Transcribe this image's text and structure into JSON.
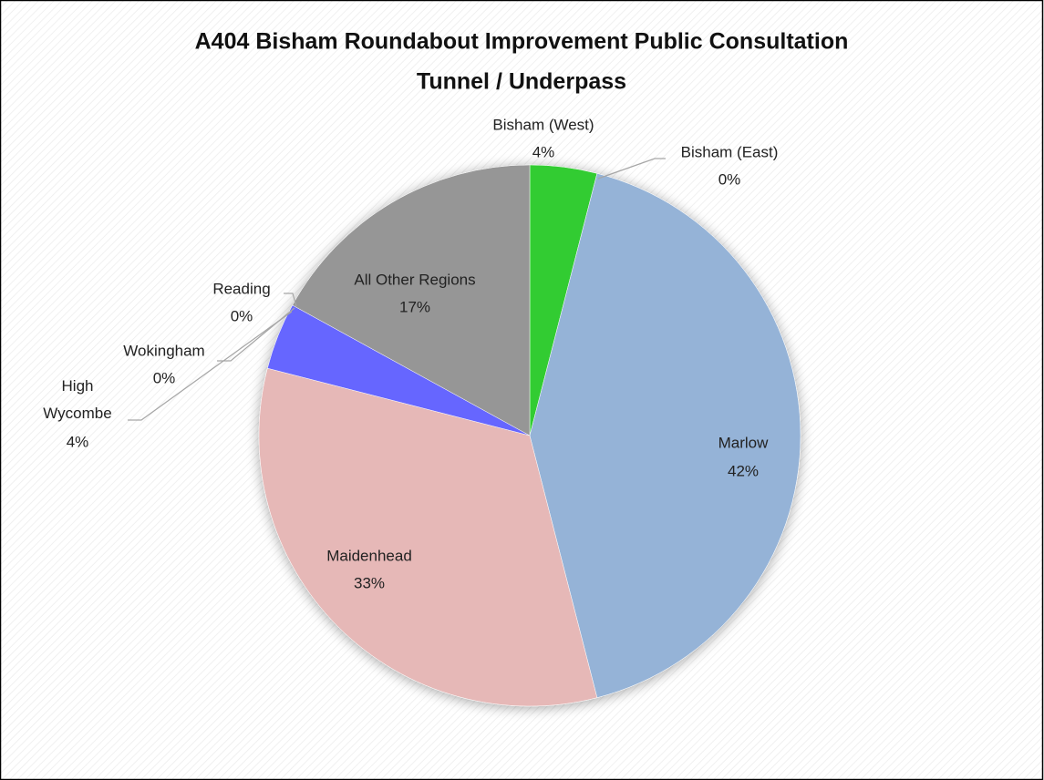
{
  "chart_data": {
    "type": "pie",
    "title": [
      "A404 Bisham Roundabout Improvement Public Consultation",
      "Tunnel / Underpass"
    ],
    "categories": [
      "Bisham (West)",
      "Bisham (East)",
      "Marlow",
      "Maidenhead",
      "High Wycombe",
      "Wokingham",
      "Reading",
      "All Other Regions"
    ],
    "values": [
      4,
      0,
      42,
      33,
      4,
      0,
      0,
      17
    ],
    "value_labels": [
      "4%",
      "0%",
      "42%",
      "33%",
      "4%",
      "0%",
      "0%",
      "17%"
    ],
    "colors": [
      "#33cc33",
      "#c0504d",
      "#95b3d7",
      "#e6b8b7",
      "#6666ff",
      "#9bbb59",
      "#f79646",
      "#969696"
    ]
  }
}
